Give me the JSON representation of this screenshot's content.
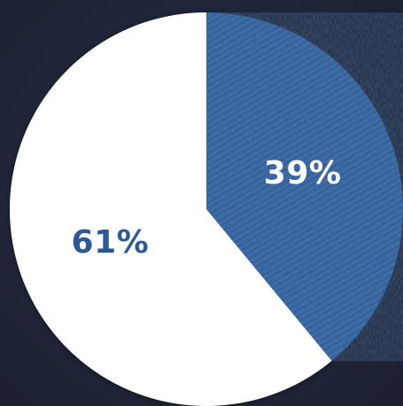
{
  "chart_data": {
    "type": "pie",
    "title": "",
    "slices": [
      {
        "label": "39%",
        "value": 39,
        "color": "#2f5f9e",
        "pattern": "denim"
      },
      {
        "label": "61%",
        "value": 61,
        "color": "#ffffff",
        "pattern": "solid"
      }
    ],
    "label_colors": {
      "on_white": "#2d5a96",
      "on_denim": "#ffffff"
    },
    "background": "#20263a"
  }
}
